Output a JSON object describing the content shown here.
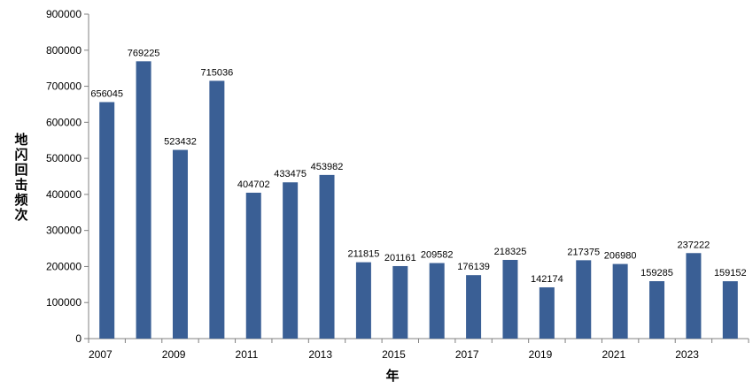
{
  "chart_data": {
    "type": "bar",
    "title": "",
    "xlabel": "年",
    "ylabel": "地闪回击频次",
    "ylim": [
      0,
      900000
    ],
    "yticks": [
      0,
      100000,
      200000,
      300000,
      400000,
      500000,
      600000,
      700000,
      800000,
      900000
    ],
    "ytick_labels": [
      "0",
      "100000",
      "200000",
      "300000",
      "400000",
      "500000",
      "600000",
      "700000",
      "800000",
      "900000"
    ],
    "categories": [
      "2007",
      "2008",
      "2009",
      "2010",
      "2011",
      "2012",
      "2013",
      "2014",
      "2015",
      "2016",
      "2017",
      "2018",
      "2019",
      "2020",
      "2021",
      "2022",
      "2023",
      "2024"
    ],
    "xtick_labels": [
      "2007",
      "",
      "2009",
      "",
      "2011",
      "",
      "2013",
      "",
      "2015",
      "",
      "2017",
      "",
      "2019",
      "",
      "2021",
      "",
      "2023",
      ""
    ],
    "values": [
      656045,
      769225,
      523432,
      715036,
      404702,
      433475,
      453982,
      211815,
      201161,
      209582,
      176139,
      218325,
      142174,
      217375,
      206980,
      159285,
      237222,
      159152
    ],
    "bar_color": "#3a5f95",
    "grid": false,
    "legend": "none"
  }
}
